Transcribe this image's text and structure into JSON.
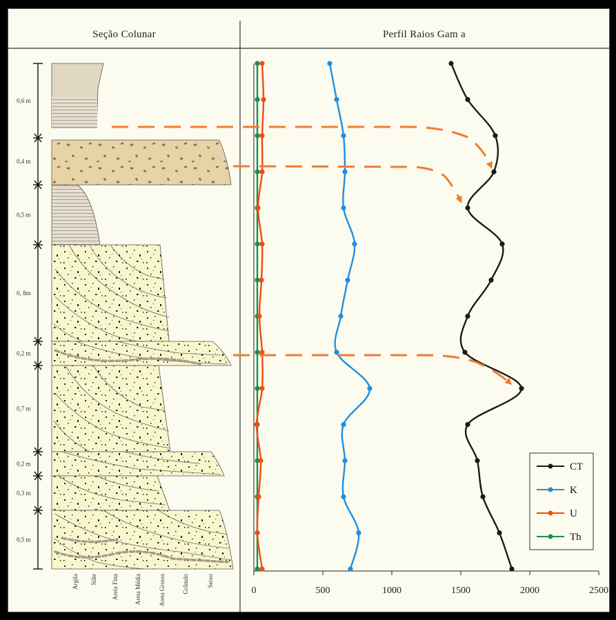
{
  "left_panel": {
    "title": "Seção Colunar",
    "layers": [
      {
        "thickness_label": "0,6 m",
        "lithology": "argila-silte"
      },
      {
        "thickness_label": "0,4 m",
        "lithology": "arenito-cascalho"
      },
      {
        "thickness_label": "0,5 m",
        "lithology": "silte"
      },
      {
        "thickness_label": "0, 8m",
        "lithology": "arenito-estratificado"
      },
      {
        "thickness_label": "0,2 m",
        "lithology": "arenito-lag"
      },
      {
        "thickness_label": "0,7 m",
        "lithology": "arenito-estratificado"
      },
      {
        "thickness_label": "0,2 m",
        "lithology": "arenito"
      },
      {
        "thickness_label": "0,3 m",
        "lithology": "arenito-estratificado"
      },
      {
        "thickness_label": "0,5 m",
        "lithology": "arenito-lag"
      }
    ],
    "grain_size_labels": [
      "Argila",
      "Silte",
      "Areia Fina",
      "Areia Média",
      "Areia Grossa",
      "Grânulo",
      "Seixo"
    ]
  },
  "chart_data": {
    "type": "line",
    "title": "Perfil Raios Gam a",
    "xlabel": "",
    "ylabel": "",
    "xlim": [
      0,
      2500
    ],
    "xticks": [
      0,
      500,
      1000,
      1500,
      2000,
      2500
    ],
    "orientation": "vertical-profile",
    "sample_count": 15,
    "series": [
      {
        "name": "CT",
        "color": "#1a1a1a",
        "values": [
          1430,
          1550,
          1750,
          1740,
          1550,
          1800,
          1720,
          1550,
          1530,
          1940,
          1550,
          1620,
          1660,
          1780,
          1870
        ]
      },
      {
        "name": "K",
        "color": "#1e8fe0",
        "values": [
          550,
          600,
          650,
          660,
          650,
          730,
          680,
          630,
          600,
          840,
          650,
          660,
          650,
          760,
          700
        ]
      },
      {
        "name": "U",
        "color": "#ee4e10",
        "values": [
          60,
          70,
          60,
          60,
          30,
          60,
          55,
          40,
          60,
          60,
          20,
          50,
          35,
          25,
          60
        ]
      },
      {
        "name": "Th",
        "color": "#1e8e50",
        "values": [
          25,
          25,
          25,
          25,
          25,
          25,
          25,
          25,
          25,
          25,
          25,
          25,
          25,
          25,
          25
        ]
      }
    ],
    "legend_position": "bottom-right",
    "grid": false,
    "annotations": "dashed orange correlation arrows from column layers to CT peaks"
  }
}
